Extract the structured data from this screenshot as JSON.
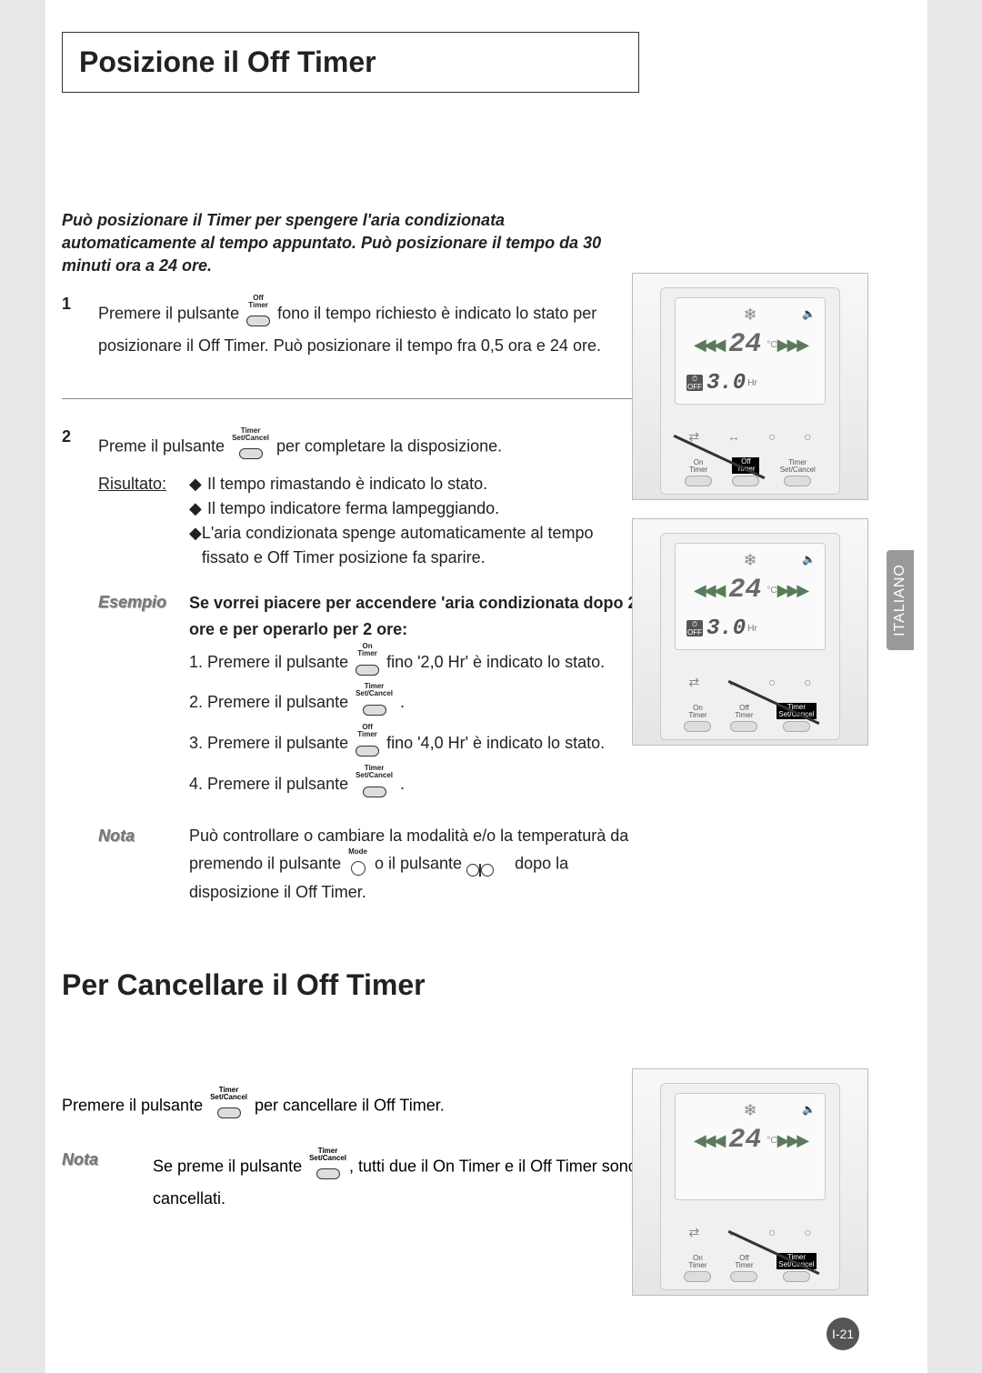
{
  "page": {
    "language": "ITALIANO",
    "number": "I-21"
  },
  "section1": {
    "title": "Posizione il Off Timer",
    "intro": "Può posizionare il Timer per spengere l'aria condizionata automaticamente al tempo appuntato. Può posizionare il tempo da 30 minuti ora a 24 ore.",
    "step1": {
      "num": "1",
      "text_a": "Premere il pulsante ",
      "btn1_label": "Off\nTimer",
      "text_b": " fono il tempo richiesto è indicato lo stato per posizionare il Off Timer. Può posizionare il tempo fra 0,5 ora e 24 ore."
    },
    "step2": {
      "num": "2",
      "text_a": "Preme il pulsante ",
      "btn1_label": "Timer\nSet/Cancel",
      "text_b": " per completare la disposizione.",
      "result_label": "Risultato:",
      "bullets": [
        "Il tempo rimastando è indicato lo stato.",
        "Il tempo indicatore ferma lampeggiando.",
        "L'aria condizionata spenge automaticamente al tempo fissato e Off Timer posizione fa sparire."
      ],
      "example_label": "Esempio",
      "example_bold": "Se vorrei piacere per accendere 'aria condizionata dopo 2 ore e per operarlo per 2 ore:",
      "ex1_a": "1. Premere il pulsante ",
      "ex1_btn": "On\nTimer",
      "ex1_b": " fino '2,0 Hr' è indicato lo stato.",
      "ex2_a": "2. Premere il pulsante ",
      "ex2_btn": "Timer\nSet/Cancel",
      "ex2_b": " .",
      "ex3_a": "3. Premere il pulsante ",
      "ex3_btn": "Off\nTimer",
      "ex3_b": " fino '4,0 Hr' è indicato lo stato.",
      "ex4_a": "4. Premere il pulsante ",
      "ex4_btn": "Timer\nSet/Cancel",
      "ex4_b": " .",
      "nota_label": "Nota",
      "nota_a": "Può controllare o cambiare la modalità e/o la temperaturà da premendo il pulsante ",
      "nota_mode": "Mode",
      "nota_b": " o il pulsante ",
      "nota_c": " dopo la disposizione il Off Timer."
    }
  },
  "section2": {
    "title": "Per Cancellare il Off Timer",
    "text_a": "Premere il pulsante ",
    "btn_label": "Timer\nSet/Cancel",
    "text_b": " per cancellare il Off Timer.",
    "nota_label": "Nota",
    "nota_a": "Se preme il pulsante ",
    "nota_btn": "Timer\nSet/Cancel",
    "nota_b": ", tutti due il On Timer e il Off Timer sono cancellati."
  },
  "devices": {
    "temp": "24",
    "temp_unit": "°C",
    "timer_value": "3.0",
    "timer_unit": "Hr",
    "off_label": "OFF",
    "buttons": {
      "on_timer": "On\nTimer",
      "off_timer": "Off\nTimer",
      "set_cancel": "Timer\nSet/Cancel"
    }
  }
}
